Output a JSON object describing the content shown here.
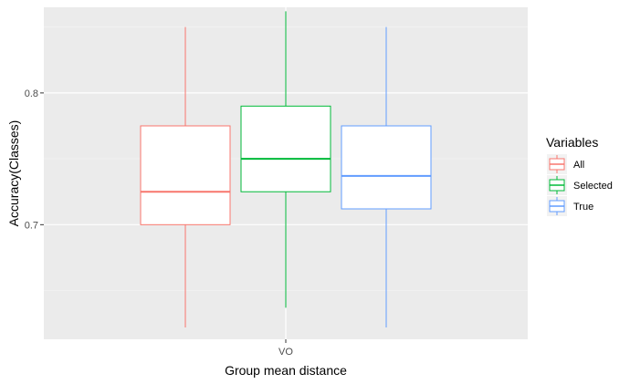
{
  "chart_data": {
    "type": "boxplot",
    "title": "",
    "xlabel": "Group mean distance",
    "ylabel": "Accuracy(Classes)",
    "categories": [
      "VO"
    ],
    "ylim": [
      0.613,
      0.865
    ],
    "yticks": [
      0.7,
      0.8
    ],
    "ytick_labels": [
      "0.7",
      "0.8"
    ],
    "y_minor_ticks": [
      0.65,
      0.75,
      0.85
    ],
    "grid": true,
    "legend": {
      "title": "Variables",
      "position": "right"
    },
    "series": [
      {
        "name": "All",
        "color": "#F8766D",
        "whisker_low": 0.622,
        "q1": 0.7,
        "median": 0.725,
        "q3": 0.775,
        "whisker_high": 0.85
      },
      {
        "name": "Selected",
        "color": "#00BA38",
        "whisker_low": 0.637,
        "q1": 0.725,
        "median": 0.75,
        "q3": 0.79,
        "whisker_high": 0.862
      },
      {
        "name": "True",
        "color": "#619CFF",
        "whisker_low": 0.622,
        "q1": 0.712,
        "median": 0.737,
        "q3": 0.775,
        "whisker_high": 0.85
      }
    ]
  }
}
